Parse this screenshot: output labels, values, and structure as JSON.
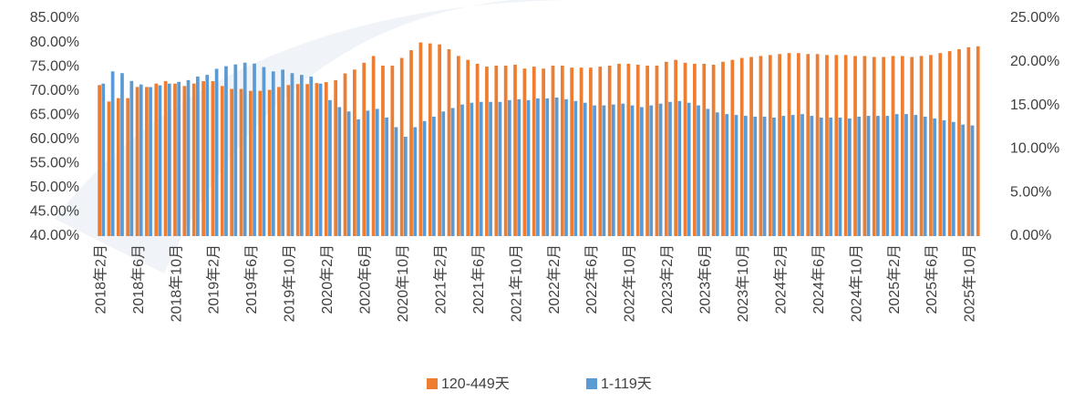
{
  "chart_data": {
    "type": "bar",
    "categories": [
      "2018年2月",
      null,
      null,
      null,
      "2018年6月",
      null,
      null,
      null,
      "2018年10月",
      null,
      null,
      null,
      "2019年2月",
      null,
      null,
      null,
      "2019年6月",
      null,
      null,
      null,
      "2019年10月",
      null,
      null,
      null,
      "2020年2月",
      null,
      null,
      null,
      "2020年6月",
      null,
      null,
      null,
      "2020年10月",
      null,
      null,
      null,
      "2021年2月",
      null,
      null,
      null,
      "2021年6月",
      null,
      null,
      null,
      "2021年10月",
      null,
      null,
      null,
      "2022年2月",
      null,
      null,
      null,
      "2022年6月",
      null,
      null,
      null,
      "2022年10月",
      null,
      null,
      null,
      "2023年2月",
      null,
      null,
      null,
      "2023年6月",
      null,
      null,
      null,
      "2023年10月",
      null,
      null,
      null,
      "2024年2月",
      null,
      null,
      null,
      "2024年6月",
      null,
      null,
      null,
      "2024年10月",
      null,
      null,
      null,
      "2025年2月",
      null,
      null,
      null,
      "2025年6月",
      null,
      null,
      null,
      "2025年10月",
      null
    ],
    "series": [
      {
        "name": "120-449天",
        "color": "#ed7d31",
        "axis": "y",
        "values": [
          71.2,
          67.8,
          68.5,
          68.5,
          70.8,
          70.8,
          71.5,
          72,
          71.5,
          71,
          71.5,
          72,
          72,
          71,
          70.4,
          70.4,
          70,
          70,
          70.2,
          70.8,
          71.2,
          71.4,
          71.4,
          71.6,
          71.8,
          72.2,
          73.6,
          74.4,
          75.8,
          77.2,
          75.2,
          75.2,
          76.8,
          78.4,
          80,
          79.8,
          79.6,
          78.6,
          77.2,
          76.4,
          75.6,
          75,
          75.2,
          75.2,
          75.4,
          74.6,
          75,
          74.6,
          75.2,
          75.2,
          74.8,
          74.8,
          74.8,
          75,
          75.2,
          75.6,
          75.6,
          75.4,
          75.2,
          75.2,
          76,
          76.4,
          75.8,
          75.6,
          75.6,
          75.4,
          76,
          76.4,
          76.8,
          77,
          77.2,
          77.4,
          77.6,
          77.8,
          77.8,
          77.6,
          77.6,
          77.4,
          77.4,
          77.4,
          77.2,
          77.2,
          77,
          77,
          77.2,
          77.2,
          77,
          77.2,
          77.4,
          77.8,
          78.2,
          78.6,
          79,
          79.2
        ]
      },
      {
        "name": "1-119天",
        "color": "#5b9bd5",
        "axis": "y2",
        "values": [
          17.5,
          18.9,
          18.7,
          17.8,
          17.4,
          17.1,
          17.3,
          17.5,
          17.7,
          17.9,
          18.3,
          18.5,
          19.2,
          19.5,
          19.7,
          19.9,
          19.8,
          19.4,
          18.9,
          19.1,
          18.7,
          18.5,
          18.3,
          17.5,
          15.6,
          14.8,
          14.3,
          13.4,
          14.4,
          14.6,
          13.6,
          12.5,
          11.4,
          12.5,
          13.2,
          13.7,
          14.3,
          14.7,
          15.1,
          15.3,
          15.4,
          15.4,
          15.4,
          15.6,
          15.7,
          15.6,
          15.8,
          15.8,
          15.9,
          15.7,
          15.5,
          15.3,
          15,
          15,
          15.1,
          15.2,
          15,
          14.8,
          15,
          15.2,
          15.4,
          15.5,
          15.3,
          15,
          14.6,
          14.2,
          14,
          13.9,
          13.8,
          13.7,
          13.7,
          13.6,
          13.8,
          13.9,
          14,
          13.8,
          13.6,
          13.6,
          13.6,
          13.5,
          13.7,
          13.8,
          13.8,
          13.8,
          14,
          14,
          13.9,
          13.7,
          13.5,
          13.3,
          13.1,
          12.8,
          12.7,
          null
        ]
      }
    ],
    "ylim": [
      40,
      85
    ],
    "yticks": [
      {
        "value": 40,
        "label": "40.00%"
      },
      {
        "value": 45,
        "label": "45.00%"
      },
      {
        "value": 50,
        "label": "50.00%"
      },
      {
        "value": 55,
        "label": "55.00%"
      },
      {
        "value": 60,
        "label": "60.00%"
      },
      {
        "value": 65,
        "label": "65.00%"
      },
      {
        "value": 70,
        "label": "70.00%"
      },
      {
        "value": 75,
        "label": "75.00%"
      },
      {
        "value": 80,
        "label": "80.00%"
      },
      {
        "value": 85,
        "label": "85.00%"
      }
    ],
    "y2lim": [
      0,
      25
    ],
    "y2ticks": [
      {
        "value": 0,
        "label": "0.00%"
      },
      {
        "value": 5,
        "label": "5.00%"
      },
      {
        "value": 10,
        "label": "10.00%"
      },
      {
        "value": 15,
        "label": "15.00%"
      },
      {
        "value": 20,
        "label": "20.00%"
      },
      {
        "value": 25,
        "label": "25.00%"
      }
    ],
    "legend": "bottom"
  }
}
